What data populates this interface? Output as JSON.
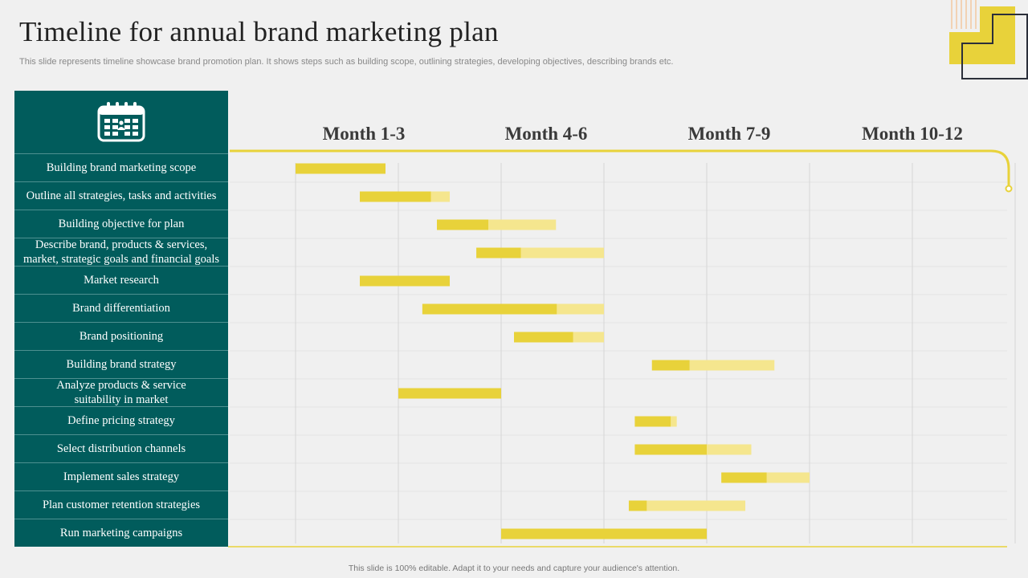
{
  "slide": {
    "title": "Timeline for annual brand marketing plan",
    "subtitle": "This slide represents timeline showcase brand promotion plan. It shows steps such as building scope, outlining strategies, developing objectives, describing brands etc.",
    "footer": "This slide is 100% editable. Adapt it to your needs and capture your audience's attention."
  },
  "colors": {
    "sidebar": "#015c5c",
    "accent": "#e8d23a",
    "accent_light": "#f5e68e",
    "background": "#f0f0f0"
  },
  "icons": {
    "header": "calendar-icon"
  },
  "chart_data": {
    "type": "gantt",
    "periods": [
      "Month 1-3",
      "Month 4-6",
      "Month 7-9",
      "Month 10-12"
    ],
    "units": "weeks",
    "week_range": [
      0,
      48
    ],
    "tasks": [
      {
        "label": "Building  brand marketing scope",
        "start": 0,
        "done": 5.25,
        "end": 5.25
      },
      {
        "label": "Outline all strategies, tasks and activities",
        "start": 3.75,
        "done": 7.9,
        "end": 9
      },
      {
        "label": "Building  objective for plan",
        "start": 8.25,
        "done": 11.25,
        "end": 15.2
      },
      {
        "label": "Describe brand, products & services,\nmarket, strategic goals and financial goals",
        "start": 10.55,
        "done": 13.15,
        "end": 18
      },
      {
        "label": "Market research",
        "start": 3.75,
        "done": 9,
        "end": 9
      },
      {
        "label": "Brand differentiation",
        "start": 7.4,
        "done": 15.25,
        "end": 18
      },
      {
        "label": "Brand positioning",
        "start": 12.75,
        "done": 16.2,
        "end": 18
      },
      {
        "label": "Building  brand strategy",
        "start": 20.8,
        "done": 23,
        "end": 27.95
      },
      {
        "label": "Analyze products & service\nsuitability  in market",
        "start": 6,
        "done": 12,
        "end": 12
      },
      {
        "label": "Define pricing  strategy",
        "start": 19.8,
        "done": 21.9,
        "end": 22.25
      },
      {
        "label": "Select distribution  channels",
        "start": 19.8,
        "done": 24,
        "end": 26.6
      },
      {
        "label": "Implement sales strategy",
        "start": 24.85,
        "done": 27.5,
        "end": 30
      },
      {
        "label": "Plan customer retention strategies",
        "start": 19.45,
        "done": 20.5,
        "end": 26.25
      },
      {
        "label": "Run marketing campaigns",
        "start": 12,
        "done": 24,
        "end": 24
      }
    ]
  }
}
